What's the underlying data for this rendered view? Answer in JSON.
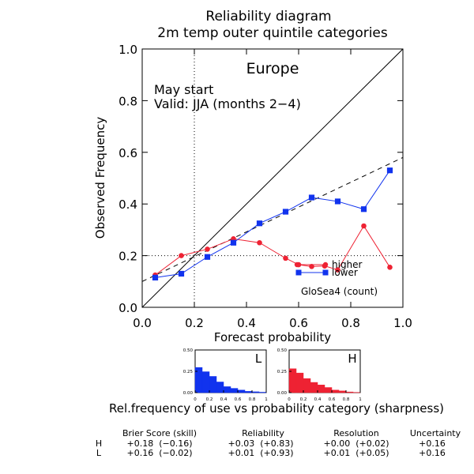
{
  "title_line1": "Reliability diagram",
  "title_line2": "2m temp outer quintile categories",
  "region": "Europe",
  "start_label": "May start",
  "valid_label": "Valid: JJA (months 2−4)",
  "model_label": "GloSea4 (count)",
  "legend": {
    "higher": "higher",
    "lower": "lower"
  },
  "colors": {
    "higher": "#ee2233",
    "lower": "#1133ee"
  },
  "sharpness_caption": "Rel.frequency of use vs probability category (sharpness)",
  "score_table": {
    "headers": [
      "Brier Score (skill)",
      "Reliability",
      "Resolution",
      "Uncertainty"
    ],
    "rows": [
      {
        "label": "H",
        "brier": "+0.18  (−0.16)",
        "reliability": "+0.03  (+0.83)",
        "resolution": "+0.00  (+0.02)",
        "uncertainty": "+0.16"
      },
      {
        "label": "L",
        "brier": "+0.16  (−0.02)",
        "reliability": "+0.01  (+0.93)",
        "resolution": "+0.01  (+0.05)",
        "uncertainty": "+0.16"
      }
    ]
  },
  "chart_data": [
    {
      "type": "line",
      "title": "Reliability diagram 2m temp outer quintile categories",
      "xlabel": "Forecast probability",
      "ylabel": "Observed Frequency",
      "xlim": [
        0,
        1
      ],
      "ylim": [
        0,
        1
      ],
      "xticks": [
        "0.0",
        "0.2",
        "0.4",
        "0.6",
        "0.8",
        "1.0"
      ],
      "yticks": [
        "0.0",
        "0.2",
        "0.4",
        "0.6",
        "0.8",
        "1.0"
      ],
      "climatology": 0.2,
      "diagonal": [
        [
          0,
          0
        ],
        [
          1,
          1
        ]
      ],
      "trend_line": [
        [
          0,
          0.1
        ],
        [
          1,
          0.58
        ]
      ],
      "series": [
        {
          "name": "higher",
          "color": "#ee2233",
          "marker": "circle",
          "x": [
            0.05,
            0.15,
            0.25,
            0.35,
            0.45,
            0.55,
            0.6,
            0.65,
            0.7,
            0.75,
            0.85,
            0.95
          ],
          "y": [
            0.125,
            0.2,
            0.225,
            0.265,
            0.25,
            0.19,
            0.165,
            0.158,
            0.16,
            0.145,
            0.315,
            0.155
          ]
        },
        {
          "name": "lower",
          "color": "#1133ee",
          "marker": "square",
          "x": [
            0.05,
            0.15,
            0.25,
            0.35,
            0.45,
            0.55,
            0.65,
            0.75,
            0.85,
            0.95
          ],
          "y": [
            0.115,
            0.13,
            0.195,
            0.25,
            0.325,
            0.37,
            0.425,
            0.41,
            0.38,
            0.53
          ]
        }
      ]
    },
    {
      "type": "bar",
      "title": "L",
      "color": "#1133ee",
      "categories": [
        0.05,
        0.15,
        0.25,
        0.35,
        0.45,
        0.55,
        0.65,
        0.75,
        0.85,
        0.95
      ],
      "values": [
        0.295,
        0.245,
        0.19,
        0.125,
        0.07,
        0.05,
        0.03,
        0.015,
        0.01,
        0.005
      ],
      "xlim": [
        0,
        1
      ],
      "ylim": [
        0,
        0.5
      ],
      "xticks": [
        "0",
        "0.2",
        "0.4",
        "0.6",
        "0.8",
        "1"
      ],
      "yticks": [
        "0.00",
        "0.25",
        "0.50"
      ]
    },
    {
      "type": "bar",
      "title": "H",
      "color": "#ee2233",
      "categories": [
        0.05,
        0.15,
        0.25,
        0.35,
        0.45,
        0.55,
        0.65,
        0.75,
        0.85,
        0.95
      ],
      "values": [
        0.28,
        0.23,
        0.165,
        0.12,
        0.09,
        0.06,
        0.03,
        0.02,
        0.008,
        0.003
      ],
      "xlim": [
        0,
        1
      ],
      "ylim": [
        0,
        0.5
      ],
      "xticks": [
        "0",
        "0.2",
        "0.4",
        "0.6",
        "0.8",
        "1"
      ],
      "yticks": [
        "0.00",
        "0.25",
        "0.50"
      ]
    }
  ]
}
